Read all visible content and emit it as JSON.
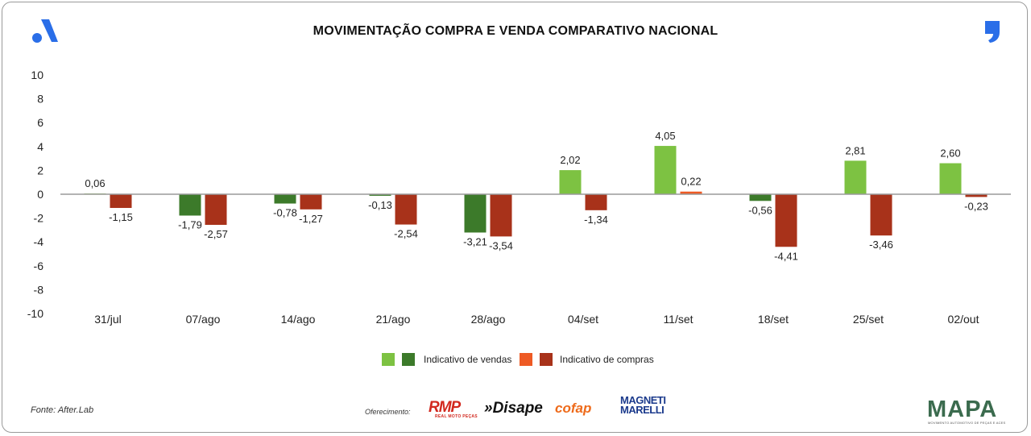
{
  "header": {
    "title": "MOVIMENTAÇÃO COMPRA E VENDA COMPARATIVO NACIONAL"
  },
  "chart_data": {
    "type": "bar",
    "title": "MOVIMENTAÇÃO COMPRA E VENDA COMPARATIVO NACIONAL",
    "categories": [
      "31/jul",
      "07/ago",
      "14/ago",
      "21/ago",
      "28/ago",
      "04/set",
      "11/set",
      "18/set",
      "25/set",
      "02/out"
    ],
    "series": [
      {
        "name": "Indicativo de vendas",
        "values": [
          0.06,
          -1.79,
          -0.78,
          -0.13,
          -3.21,
          2.02,
          4.05,
          -0.56,
          2.81,
          2.6
        ],
        "labels": [
          "0,06",
          "-1,79",
          "-0,78",
          "-0,13",
          "-3,21",
          "2,02",
          "4,05",
          "-0,56",
          "2,81",
          "2,60"
        ],
        "color_positive": "#7dc242",
        "color_negative": "#3c7a2a"
      },
      {
        "name": "Indicativo de compras",
        "values": [
          -1.15,
          -2.57,
          -1.27,
          -2.54,
          -3.54,
          -1.34,
          0.22,
          -4.41,
          -3.46,
          -0.23
        ],
        "labels": [
          "-1,15",
          "-2,57",
          "-1,27",
          "-2,54",
          "-3,54",
          "-1,34",
          "0,22",
          "-4,41",
          "-3,46",
          "-0,23"
        ],
        "color_positive": "#ee5a24",
        "color_negative": "#a8321a"
      }
    ],
    "ylim": [
      -10,
      10
    ],
    "yticks": [
      10,
      8,
      6,
      4,
      2,
      0,
      -2,
      -4,
      -6,
      -8,
      -10
    ],
    "xlabel": "",
    "ylabel": "",
    "grid": false,
    "legend": "bottom-center"
  },
  "legend": {
    "sales_label": "Indicativo de vendas",
    "purchases_label": "Indicativo de compras",
    "sales_colors": [
      "#7dc242",
      "#3c7a2a"
    ],
    "purchases_colors": [
      "#ee5a24",
      "#a8321a"
    ]
  },
  "footer": {
    "source": "Fonte: After.Lab",
    "sponsor_label": "Oferecimento:",
    "sponsors": {
      "rmp": "RMP",
      "rmp_sub": "REAL MOTO PEÇAS",
      "disape": "»Disape",
      "cofap": "cofap",
      "magneti_line1": "MAGNETI",
      "magneti_line2": "MARELLI",
      "mapa": "MAPA",
      "mapa_sub": "MOVIMENTO AUTOMOTIVO DE PEÇAS E ACESSÓRIOS"
    }
  }
}
